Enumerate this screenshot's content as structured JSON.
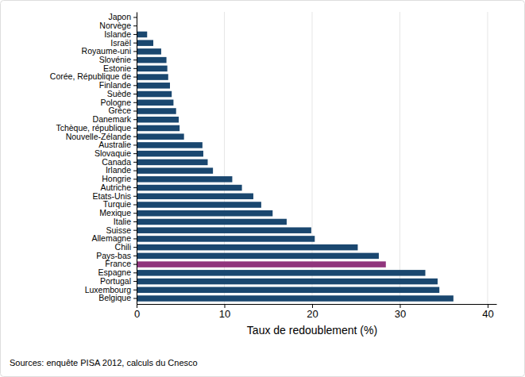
{
  "chart_data": {
    "type": "bar",
    "orientation": "horizontal",
    "x_label": "Taux de redoublement (%)",
    "annotations": [
      "Sources: enquête PISA 2012, calculs du Cnesco"
    ],
    "categories": [
      "Japon",
      "Norvège",
      "Islande",
      "Israël",
      "Royaume-uni",
      "Slovénie",
      "Estonie",
      "Corée, République de",
      "Finlande",
      "Suède",
      "Pologne",
      "Grèce",
      "Danemark",
      "Tchèque, république",
      "Nouvelle-Zélande",
      "Australie",
      "Slovaquie",
      "Canada",
      "Irlande",
      "Hongrie",
      "Autriche",
      "Etats-Unis",
      "Turquie",
      "Mexique",
      "Italie",
      "Suisse",
      "Allemagne",
      "Chili",
      "Pays-bas",
      "France",
      "Espagne",
      "Portugal",
      "Luxembourg",
      "Belgique"
    ],
    "values": [
      0,
      0,
      1.2,
      1.9,
      2.8,
      3.4,
      3.5,
      3.6,
      3.8,
      4.0,
      4.2,
      4.5,
      4.8,
      4.9,
      5.4,
      7.5,
      7.6,
      8.1,
      8.7,
      10.9,
      12.0,
      13.3,
      14.2,
      15.5,
      17.1,
      19.9,
      20.3,
      25.2,
      27.6,
      28.4,
      32.9,
      34.3,
      34.5,
      36.1
    ],
    "colors": [
      "#1a476f",
      "#1a476f",
      "#1a476f",
      "#1a476f",
      "#1a476f",
      "#1a476f",
      "#1a476f",
      "#1a476f",
      "#1a476f",
      "#1a476f",
      "#1a476f",
      "#1a476f",
      "#1a476f",
      "#1a476f",
      "#1a476f",
      "#1a476f",
      "#1a476f",
      "#1a476f",
      "#1a476f",
      "#1a476f",
      "#1a476f",
      "#1a476f",
      "#1a476f",
      "#1a476f",
      "#1a476f",
      "#1a476f",
      "#1a476f",
      "#1a476f",
      "#1a476f",
      "#90357d",
      "#1a476f",
      "#1a476f",
      "#1a476f",
      "#1a476f"
    ],
    "xlim": [
      0,
      41
    ],
    "xticks": [
      0,
      10,
      20,
      30,
      40
    ],
    "grid": true
  }
}
